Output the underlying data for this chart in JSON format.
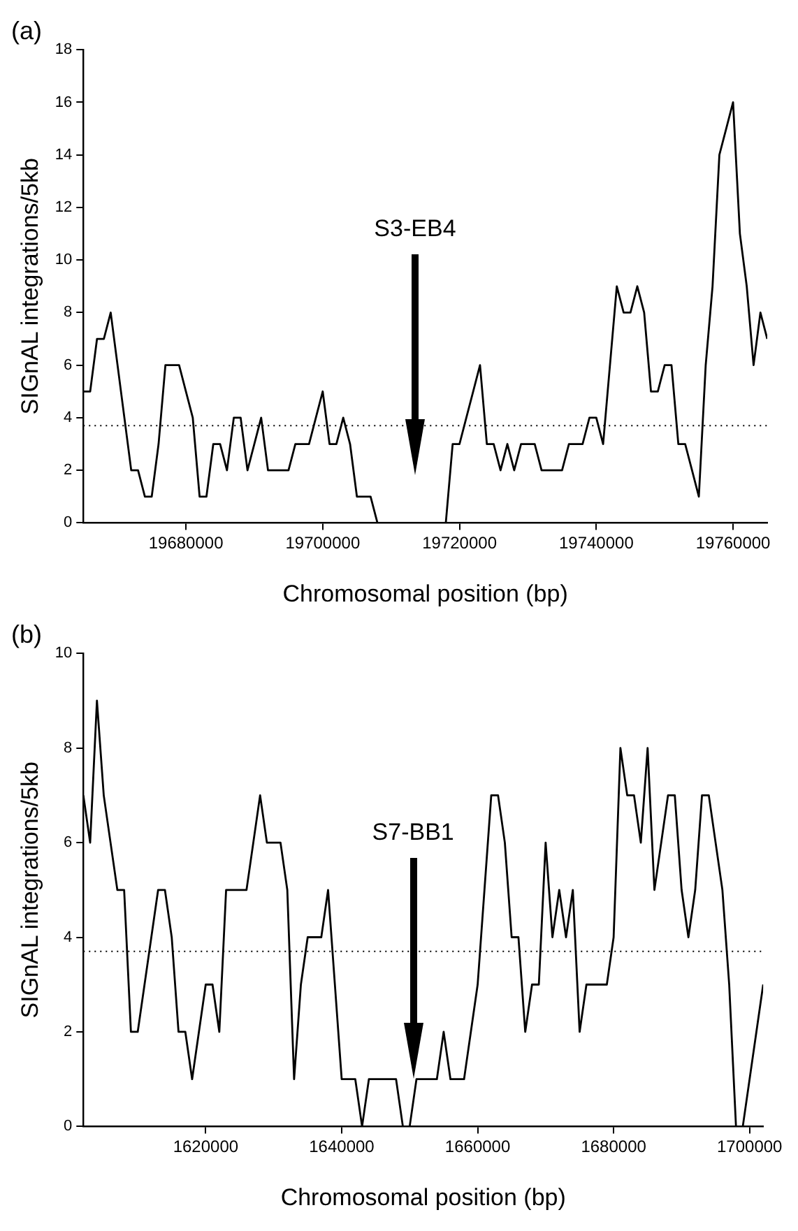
{
  "chart_data": [
    {
      "type": "line",
      "title": "(a)",
      "xlabel": "Chromosomal position (bp)",
      "ylabel": "SIGnAL integrations/5kb",
      "x": [
        19665000,
        19666000,
        19667000,
        19668000,
        19669000,
        19670000,
        19671000,
        19672000,
        19673000,
        19674000,
        19675000,
        19676000,
        19677000,
        19678000,
        19679000,
        19680000,
        19681000,
        19682000,
        19683000,
        19684000,
        19685000,
        19686000,
        19687000,
        19688000,
        19689000,
        19690000,
        19691000,
        19692000,
        19693000,
        19694000,
        19695000,
        19696000,
        19697000,
        19698000,
        19699000,
        19700000,
        19701000,
        19702000,
        19703000,
        19704000,
        19705000,
        19706000,
        19707000,
        19708000,
        19709000,
        19710000,
        19711000,
        19712000,
        19713000,
        19714000,
        19715000,
        19716000,
        19717000,
        19718000,
        19719000,
        19720000,
        19721000,
        19722000,
        19723000,
        19724000,
        19725000,
        19726000,
        19727000,
        19728000,
        19729000,
        19730000,
        19731000,
        19732000,
        19733000,
        19734000,
        19735000,
        19736000,
        19737000,
        19738000,
        19739000,
        19740000,
        19741000,
        19742000,
        19743000,
        19744000,
        19745000,
        19746000,
        19747000,
        19748000,
        19749000,
        19750000,
        19751000,
        19752000,
        19753000,
        19754000,
        19755000,
        19756000,
        19757000,
        19758000,
        19759000,
        19760000,
        19761000,
        19762000,
        19763000,
        19764000,
        19765000
      ],
      "series": [
        {
          "color": "#000000",
          "values": [
            5,
            5,
            7,
            7,
            8,
            6,
            4,
            2,
            2,
            1,
            1,
            3,
            6,
            6,
            6,
            5,
            4,
            1,
            1,
            3,
            3,
            2,
            4,
            4,
            2,
            3,
            4,
            2,
            2,
            2,
            2,
            3,
            3,
            3,
            4,
            5,
            3,
            3,
            4,
            3,
            1,
            1,
            1,
            0,
            0,
            0,
            0,
            0,
            0,
            0,
            0,
            0,
            0,
            0,
            3,
            3,
            4,
            5,
            6,
            3,
            3,
            2,
            3,
            2,
            3,
            3,
            3,
            2,
            2,
            2,
            2,
            3,
            3,
            3,
            4,
            4,
            3,
            6,
            9,
            8,
            8,
            9,
            8,
            5,
            5,
            6,
            6,
            3,
            3,
            2,
            1,
            6,
            9,
            14,
            15,
            16,
            11,
            9,
            6,
            8,
            7
          ]
        }
      ],
      "xlim": [
        19665000,
        19765000
      ],
      "xticks": [
        19680000,
        19700000,
        19720000,
        19740000,
        19760000
      ],
      "ylim": [
        0,
        18
      ],
      "yticks": [
        0,
        2,
        4,
        6,
        8,
        10,
        12,
        14,
        16,
        18
      ],
      "ref_lines": [
        {
          "axis": "y",
          "value": 3.7,
          "line_style": "dotted",
          "color": "#000000"
        }
      ],
      "annotations": [
        "S3-EB4"
      ]
    },
    {
      "type": "line",
      "title": "(b)",
      "xlabel": "Chromosomal position (bp)",
      "ylabel": "SIGnAL integrations/5kb",
      "x": [
        1602000,
        1603000,
        1604000,
        1605000,
        1606000,
        1607000,
        1608000,
        1609000,
        1610000,
        1611000,
        1612000,
        1613000,
        1614000,
        1615000,
        1616000,
        1617000,
        1618000,
        1619000,
        1620000,
        1621000,
        1622000,
        1623000,
        1624000,
        1625000,
        1626000,
        1627000,
        1628000,
        1629000,
        1630000,
        1631000,
        1632000,
        1633000,
        1634000,
        1635000,
        1636000,
        1637000,
        1638000,
        1639000,
        1640000,
        1641000,
        1642000,
        1643000,
        1644000,
        1645000,
        1646000,
        1647000,
        1648000,
        1649000,
        1650000,
        1651000,
        1652000,
        1653000,
        1654000,
        1655000,
        1656000,
        1657000,
        1658000,
        1659000,
        1660000,
        1661000,
        1662000,
        1663000,
        1664000,
        1665000,
        1666000,
        1667000,
        1668000,
        1669000,
        1670000,
        1671000,
        1672000,
        1673000,
        1674000,
        1675000,
        1676000,
        1677000,
        1678000,
        1679000,
        1680000,
        1681000,
        1682000,
        1683000,
        1684000,
        1685000,
        1686000,
        1687000,
        1688000,
        1689000,
        1690000,
        1691000,
        1692000,
        1693000,
        1694000,
        1695000,
        1696000,
        1697000,
        1698000,
        1699000,
        1700000,
        1701000,
        1702000
      ],
      "series": [
        {
          "color": "#000000",
          "values": [
            7,
            6,
            9,
            7,
            6,
            5,
            5,
            2,
            2,
            3,
            4,
            5,
            5,
            4,
            2,
            2,
            1,
            2,
            3,
            3,
            2,
            5,
            5,
            5,
            5,
            6,
            7,
            6,
            6,
            6,
            5,
            1,
            3,
            4,
            4,
            4,
            5,
            3,
            1,
            1,
            1,
            0,
            1,
            1,
            1,
            1,
            1,
            0,
            0,
            1,
            1,
            1,
            1,
            2,
            1,
            1,
            1,
            2,
            3,
            5,
            7,
            7,
            6,
            4,
            4,
            2,
            3,
            3,
            6,
            4,
            5,
            4,
            5,
            2,
            3,
            3,
            3,
            3,
            4,
            8,
            7,
            7,
            6,
            8,
            5,
            6,
            7,
            7,
            5,
            4,
            5,
            7,
            7,
            6,
            5,
            3,
            0,
            0,
            1,
            2,
            3
          ]
        }
      ],
      "xlim": [
        1602000,
        1702000
      ],
      "xticks": [
        1620000,
        1640000,
        1660000,
        1680000,
        1700000
      ],
      "ylim": [
        0,
        10
      ],
      "yticks": [
        0,
        2,
        4,
        6,
        8,
        10
      ],
      "ref_lines": [
        {
          "axis": "y",
          "value": 3.7,
          "line_style": "dotted",
          "color": "#000000"
        }
      ],
      "annotations": [
        "S7-BB1"
      ]
    }
  ]
}
